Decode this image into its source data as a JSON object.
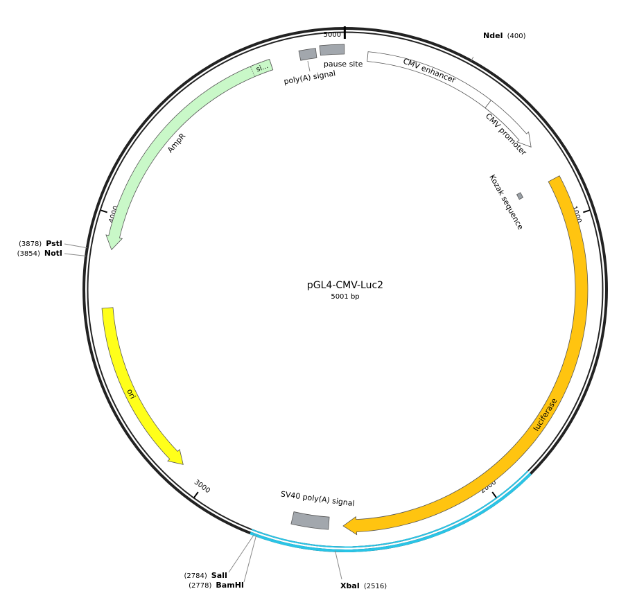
{
  "title": "pGL4-CMV-Luc2",
  "length_label": "5001 bp",
  "ticks": [
    "1000",
    "2000",
    "3000",
    "4000",
    "5000"
  ],
  "features": [
    {
      "name": "CMV enhancer"
    },
    {
      "name": "CMV promoter"
    },
    {
      "name": "Kozak sequence"
    },
    {
      "name": "luciferase"
    },
    {
      "name": "SV40 poly(A) signal"
    },
    {
      "name": "ori"
    },
    {
      "name": "AmpR"
    },
    {
      "name": "si..."
    },
    {
      "name": "poly(A) signal"
    },
    {
      "name": "pause site"
    }
  ],
  "sites": [
    {
      "name": "NdeI",
      "position": "(400)"
    },
    {
      "name": "PstI",
      "position": "(3878)"
    },
    {
      "name": "NotI",
      "position": "(3854)"
    },
    {
      "name": "SalI",
      "position": "(2784)"
    },
    {
      "name": "BamHI",
      "position": "(2778)"
    },
    {
      "name": "XbaI",
      "position": "(2516)"
    }
  ]
}
